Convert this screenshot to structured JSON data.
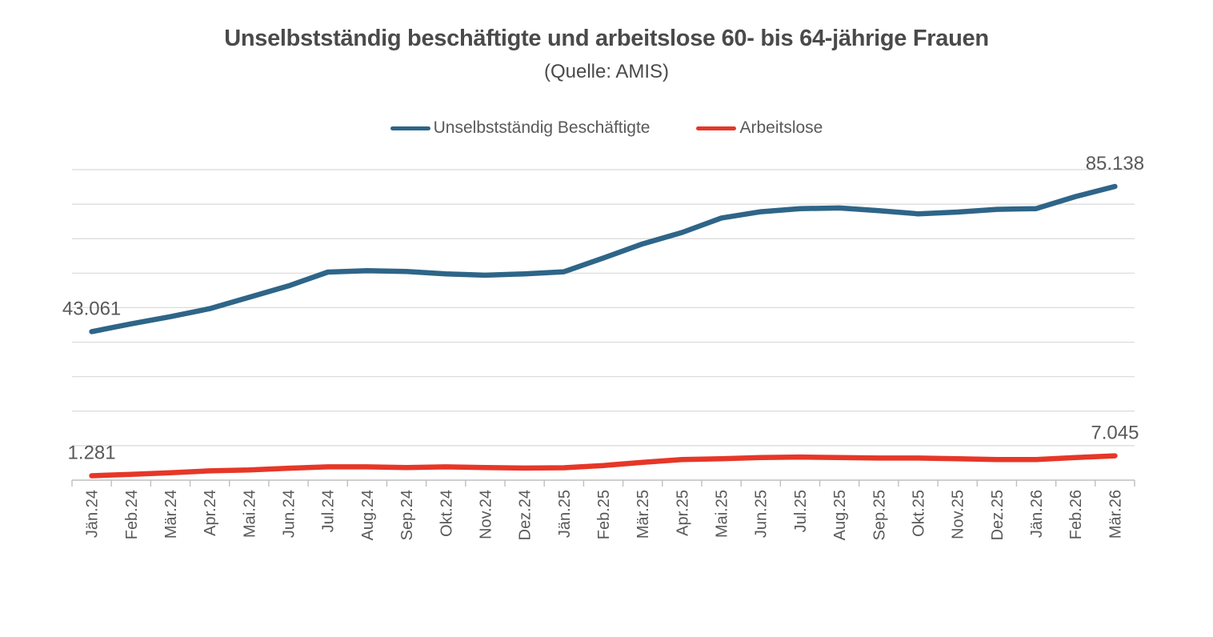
{
  "page": {
    "title": "Unselbstständig beschäftigte und arbeitslose 60- bis 64-jährige Frauen",
    "subtitle": "(Quelle: AMIS)"
  },
  "colors": {
    "gridline": "#D9D9D9",
    "axis": "#BFBFBF",
    "text": "#595959",
    "title_text": "#4a4a4a",
    "series_blue": "#2E6588",
    "series_red": "#E63728"
  },
  "chart_data": {
    "type": "line",
    "title": "Unselbstständig beschäftigte und arbeitslose 60- bis 64-jährige Frauen",
    "subtitle": "(Quelle: AMIS)",
    "xlabel": "",
    "ylabel": "",
    "ylim": [
      0,
      90000
    ],
    "gridline_step": 10000,
    "grid": true,
    "legend_position": "top",
    "x_tick_rotation": -90,
    "categories": [
      "Jän.24",
      "Feb.24",
      "Mär.24",
      "Apr.24",
      "Mai.24",
      "Jun.24",
      "Jul.24",
      "Aug.24",
      "Sep.24",
      "Okt.24",
      "Nov.24",
      "Dez.24",
      "Jän.25",
      "Feb.25",
      "Mär.25",
      "Apr.25",
      "Mai.25",
      "Jun.25",
      "Jul.25",
      "Aug.25",
      "Sep.25",
      "Okt.25",
      "Nov.25",
      "Dez.25",
      "Jän.26",
      "Feb.26",
      "Mär.26"
    ],
    "series": [
      {
        "name": "Unselbstständig Beschäftigte",
        "color": "#2E6588",
        "values": [
          43061,
          45300,
          47400,
          49700,
          53000,
          56300,
          60300,
          60700,
          60500,
          59800,
          59400,
          59800,
          60400,
          64400,
          68500,
          71800,
          76000,
          77800,
          78700,
          78900,
          78100,
          77200,
          77700,
          78500,
          78700,
          82200,
          85138
        ],
        "first_point_label": "43.061",
        "last_point_label": "85.138"
      },
      {
        "name": "Arbeitslose",
        "color": "#E63728",
        "values": [
          1281,
          1700,
          2150,
          2700,
          2950,
          3450,
          3850,
          3850,
          3650,
          3850,
          3650,
          3500,
          3600,
          4250,
          5150,
          5950,
          6200,
          6550,
          6700,
          6550,
          6400,
          6400,
          6200,
          5950,
          5950,
          6550,
          7045
        ],
        "first_point_label": "1.281",
        "last_point_label": "7.045"
      }
    ]
  }
}
